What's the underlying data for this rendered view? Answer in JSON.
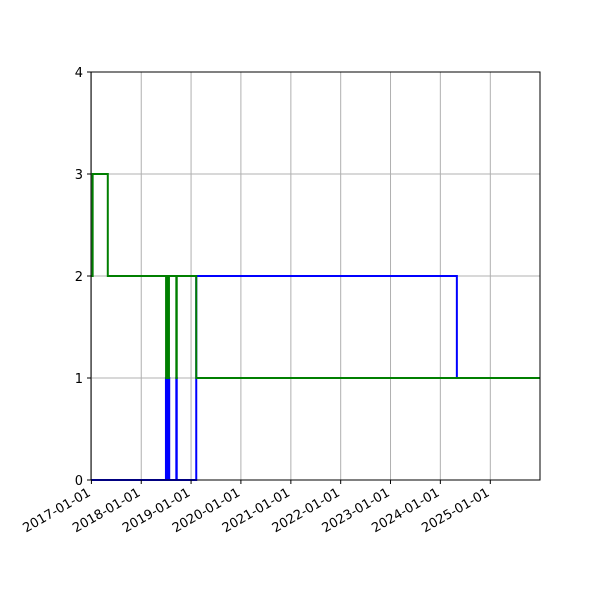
{
  "chart_data": {
    "type": "line",
    "step": "post",
    "xlim": [
      "2016-12-29",
      "2025-12-31"
    ],
    "ylim": [
      0,
      4
    ],
    "grid": true,
    "x_tick_labels": [
      "2017-01-01",
      "2018-01-01",
      "2019-01-01",
      "2020-01-01",
      "2021-01-01",
      "2022-01-01",
      "2023-01-01",
      "2024-01-01",
      "2025-01-01"
    ],
    "y_tick_labels": [
      "0",
      "1",
      "2",
      "3",
      "4"
    ],
    "series": [
      {
        "color": "#0000ff",
        "points": [
          [
            "2017-01-01",
            0
          ],
          [
            "2018-07-01",
            1
          ],
          [
            "2018-07-02",
            0
          ],
          [
            "2018-07-03",
            1
          ],
          [
            "2018-07-04",
            0
          ],
          [
            "2018-07-05",
            1
          ],
          [
            "2018-07-06",
            0
          ],
          [
            "2018-07-07",
            1
          ],
          [
            "2018-07-08",
            0
          ],
          [
            "2018-07-09",
            1
          ],
          [
            "2018-07-10",
            0
          ],
          [
            "2018-07-11",
            1
          ],
          [
            "2018-07-12",
            0
          ],
          [
            "2018-07-13",
            1
          ],
          [
            "2018-07-14",
            0
          ],
          [
            "2018-07-15",
            1
          ],
          [
            "2018-07-16",
            0
          ],
          [
            "2018-07-17",
            1
          ],
          [
            "2018-07-18",
            0
          ],
          [
            "2018-07-19",
            1
          ],
          [
            "2018-07-20",
            0
          ],
          [
            "2018-07-21",
            1
          ],
          [
            "2018-07-22",
            0
          ],
          [
            "2018-07-23",
            1
          ],
          [
            "2018-07-25",
            0
          ],
          [
            "2018-09-15",
            1
          ],
          [
            "2018-09-18",
            0
          ],
          [
            "2019-02-08",
            2
          ],
          [
            "2024-05-01",
            1
          ],
          [
            "2025-12-31",
            1
          ]
        ]
      },
      {
        "color": "#007f00",
        "points": [
          [
            "2017-01-01",
            2
          ],
          [
            "2017-01-10",
            3
          ],
          [
            "2017-05-01",
            2
          ],
          [
            "2018-07-01",
            2
          ],
          [
            "2018-07-02",
            1
          ],
          [
            "2018-07-03",
            2
          ],
          [
            "2018-07-04",
            1
          ],
          [
            "2018-07-05",
            2
          ],
          [
            "2018-07-06",
            1
          ],
          [
            "2018-07-07",
            2
          ],
          [
            "2018-07-08",
            1
          ],
          [
            "2018-07-09",
            2
          ],
          [
            "2018-07-10",
            1
          ],
          [
            "2018-07-11",
            2
          ],
          [
            "2018-07-12",
            1
          ],
          [
            "2018-07-13",
            2
          ],
          [
            "2018-07-14",
            1
          ],
          [
            "2018-07-15",
            2
          ],
          [
            "2018-07-16",
            1
          ],
          [
            "2018-07-17",
            2
          ],
          [
            "2018-07-18",
            1
          ],
          [
            "2018-07-19",
            2
          ],
          [
            "2018-07-20",
            1
          ],
          [
            "2018-07-21",
            2
          ],
          [
            "2018-07-22",
            1
          ],
          [
            "2018-07-23",
            2
          ],
          [
            "2018-09-15",
            1
          ],
          [
            "2018-09-18",
            2
          ],
          [
            "2019-02-08",
            1
          ],
          [
            "2025-12-31",
            1
          ]
        ]
      }
    ]
  }
}
